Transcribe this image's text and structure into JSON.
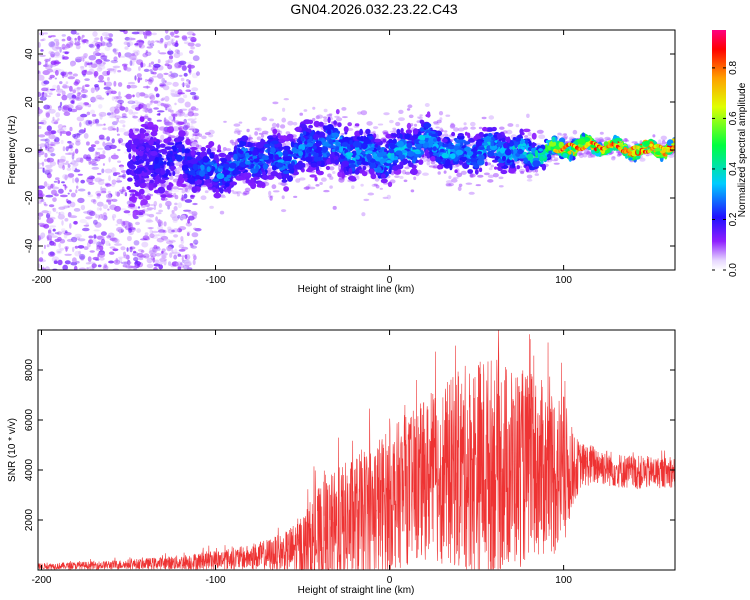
{
  "title": "GN04.2026.032.23.22.C43",
  "chart_data": [
    {
      "type": "heatmap",
      "name": "spectrogram",
      "xlabel": "Height of straight line (km)",
      "ylabel": "Frequency (Hz)",
      "xlim": [
        -202,
        164
      ],
      "ylim": [
        -50,
        50
      ],
      "xticks": [
        -200,
        -100,
        0,
        100
      ],
      "yticks": [
        -40,
        -20,
        0,
        20,
        40
      ],
      "colorbar": {
        "label": "Normalized spectral amplitude",
        "range": [
          0.0,
          0.95
        ],
        "ticks": [
          0.0,
          0.2,
          0.4,
          0.6,
          0.8
        ],
        "colormap": [
          "#e6d6ff",
          "#8f1fff",
          "#2010ff",
          "#00ccff",
          "#00ff40",
          "#e0ff00",
          "#ffa000",
          "#ff0000",
          "#ff0080"
        ]
      },
      "ridge": {
        "x": [
          -202,
          -160,
          -140,
          -120,
          -100,
          -80,
          -60,
          -40,
          -20,
          0,
          20,
          40,
          60,
          80,
          100,
          120,
          140,
          164
        ],
        "center_hz": [
          0,
          0,
          -5,
          -4,
          -10,
          -3,
          -4,
          3,
          -1,
          -3,
          4,
          -2,
          1,
          -2,
          1,
          2,
          0,
          1
        ],
        "spread_hz": [
          30,
          30,
          25,
          14,
          12,
          14,
          14,
          15,
          13,
          12,
          11,
          10,
          10,
          9,
          4,
          3,
          3,
          3
        ],
        "peak_amplitude": [
          0.15,
          0.15,
          0.2,
          0.25,
          0.3,
          0.3,
          0.3,
          0.3,
          0.35,
          0.35,
          0.35,
          0.35,
          0.35,
          0.4,
          0.7,
          0.8,
          0.8,
          0.85
        ]
      }
    },
    {
      "type": "line",
      "name": "snr",
      "xlabel": "Height of straight line (km)",
      "ylabel": "SNR (10 * v/v)",
      "xlim": [
        -202,
        164
      ],
      "ylim": [
        0,
        9600
      ],
      "xticks": [
        -200,
        -100,
        0,
        100
      ],
      "yticks": [
        2000,
        4000,
        6000,
        8000
      ],
      "color": "#ee3333",
      "envelope": {
        "x": [
          -202,
          -180,
          -160,
          -140,
          -120,
          -100,
          -80,
          -60,
          -50,
          -40,
          -30,
          -20,
          -10,
          0,
          10,
          20,
          30,
          40,
          50,
          60,
          70,
          80,
          90,
          100,
          105,
          110,
          120,
          130,
          140,
          150,
          164
        ],
        "mean": [
          150,
          170,
          200,
          250,
          300,
          400,
          500,
          700,
          900,
          1200,
          1600,
          2000,
          2400,
          2800,
          3200,
          3600,
          3800,
          4000,
          4200,
          4200,
          4100,
          4100,
          4000,
          3800,
          4000,
          4200,
          4200,
          4000,
          3900,
          3900,
          3900
        ],
        "amp": [
          120,
          150,
          180,
          220,
          300,
          400,
          500,
          800,
          1400,
          2200,
          2500,
          2600,
          2800,
          2900,
          3000,
          3200,
          3600,
          4000,
          4400,
          4400,
          4200,
          3800,
          3500,
          3300,
          1500,
          900,
          800,
          700,
          700,
          650,
          600
        ]
      }
    }
  ]
}
